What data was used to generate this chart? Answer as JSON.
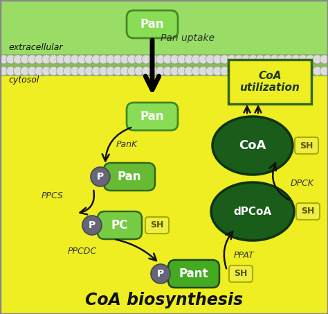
{
  "bg_extracellular": "#99DD66",
  "bg_cytosol": "#EEEE22",
  "membrane_ball_color": "#DDDDDD",
  "title": "CoA biosynthesis",
  "extracellular_label": "extracellular",
  "cytosol_label": "cytosol",
  "pan_uptake_label": "Pan uptake",
  "pank_label": "PanK",
  "ppcs_label": "PPCS",
  "ppcdc_label": "PPCDC",
  "ppat_label": "PPAT",
  "dpck_label": "DPCK",
  "pan_top_color": "#88DD55",
  "pan_top_ec": "#448822",
  "pan_mid_color": "#88DD55",
  "pan_mid_ec": "#448822",
  "p_pan_color": "#66BB33",
  "p_pan_ec": "#336611",
  "pc_color": "#77CC44",
  "pc_ec": "#336611",
  "pant_color": "#44AA22",
  "pant_ec": "#224411",
  "coa_color": "#1A5C1A",
  "coa_ec": "#0D330D",
  "dpcoa_color": "#1A5C1A",
  "dpcoa_ec": "#0D330D",
  "p_circle_color": "#666677",
  "p_circle_ec": "#444455",
  "sh_fill": "#EEEE44",
  "sh_ec": "#AAAA00",
  "util_ec": "#336611",
  "util_fill": "#EEEE22",
  "arrow_color": "#111111",
  "label_color": "#333333",
  "border_color": "#888888"
}
